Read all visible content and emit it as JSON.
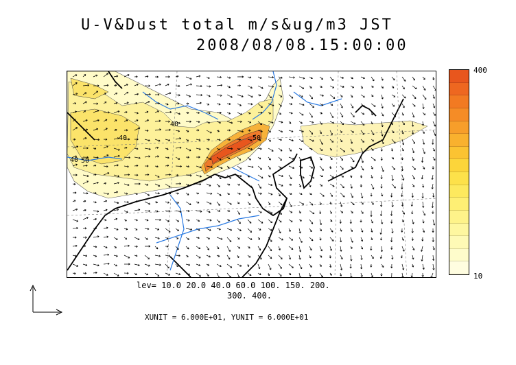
{
  "title": {
    "line1": "U-V&Dust total m/s&ug/m3 JST",
    "line2": "2008/08/08.15:00:00"
  },
  "map": {
    "contour_labels": [
      "40",
      "40",
      "50",
      "40",
      "50"
    ]
  },
  "colorbar": {
    "max_label": "400",
    "min_label": "10",
    "colors": [
      "#e8561d",
      "#ee6720",
      "#f27a22",
      "#f58c26",
      "#f79e2a",
      "#f9b12e",
      "#fbc332",
      "#fcd53a",
      "#fde14a",
      "#fde95e",
      "#feef74",
      "#fef38a",
      "#fef7a0",
      "#fefab6",
      "#fefccb",
      "#fffde0"
    ]
  },
  "levels": {
    "line1": "lev= 10.0 20.0 40.0 60.0 100. 150. 200.",
    "line2": "300. 400."
  },
  "units": "XUNIT = 6.000E+01, YUNIT = 6.000E+01"
}
